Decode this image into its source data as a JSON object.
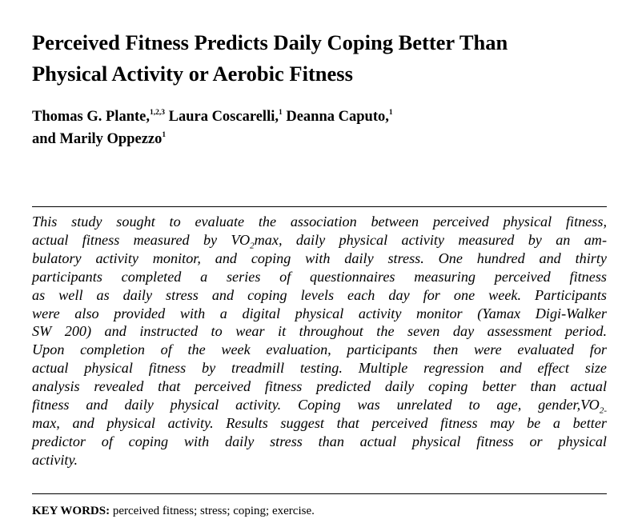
{
  "title": {
    "line1": "Perceived Fitness Predicts Daily Coping Better Than",
    "line2": "Physical Activity or Aerobic Fitness"
  },
  "authors": [
    {
      "name": "Thomas G. Plante,",
      "affil": "1,2,3"
    },
    {
      "name": "Laura Coscarelli,",
      "affil": "1"
    },
    {
      "name": "Deanna Caputo,",
      "affil": "1"
    },
    {
      "name": "and Marily Oppezzo",
      "affil": "1"
    }
  ],
  "abstract": {
    "lines": [
      "This study sought to evaluate the association between perceived physical fitness,",
      "actual fitness measured by VO",
      "2",
      "max, daily physical activity measured by an am-",
      "bulatory activity monitor, and coping with daily stress. One hundred and thirty",
      "participants completed a series of questionnaires measuring perceived fitness",
      "as well as daily stress and coping levels each day for one week. Participants",
      "were also provided with a digital physical activity monitor (Yamax Digi-Walker",
      "SW 200) and instructed to wear it throughout the seven day assessment period.",
      "Upon completion of the week evaluation, participants then were evaluated for",
      "actual physical fitness by treadmill testing. Multiple regression and effect size",
      "analysis revealed that perceived fitness predicted daily coping better than actual",
      "fitness and daily physical activity. Coping was unrelated to age, gender,VO",
      "2-",
      "max, and physical activity. Results suggest that perceived fitness may be a better",
      "predictor of coping with daily stress than actual physical fitness or physical",
      "activity."
    ]
  },
  "keywords": {
    "label": "KEY WORDS:",
    "text": "perceived fitness; stress; coping; exercise."
  }
}
